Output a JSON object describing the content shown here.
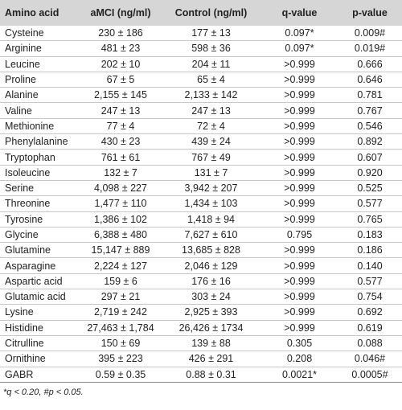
{
  "table": {
    "header": [
      "Amino acid",
      "aMCI (ng/ml)",
      "Control (ng/ml)",
      "q-value",
      "p-value"
    ],
    "rows": [
      [
        "Cysteine",
        "230 ± 186",
        "177 ± 13",
        "0.097*",
        "0.009#"
      ],
      [
        "Arginine",
        "481 ± 23",
        "598 ± 36",
        "0.097*",
        "0.019#"
      ],
      [
        "Leucine",
        "202 ± 10",
        "204 ± 11",
        ">0.999",
        "0.666"
      ],
      [
        "Proline",
        "67 ± 5",
        "65 ± 4",
        ">0.999",
        "0.646"
      ],
      [
        "Alanine",
        "2,155 ± 145",
        "2,133 ± 142",
        ">0.999",
        "0.781"
      ],
      [
        "Valine",
        "247 ± 13",
        "247 ± 13",
        ">0.999",
        "0.767"
      ],
      [
        "Methionine",
        "77 ± 4",
        "72 ± 4",
        ">0.999",
        "0.546"
      ],
      [
        "Phenylalanine",
        "430 ± 23",
        "439 ± 24",
        ">0.999",
        "0.892"
      ],
      [
        "Tryptophan",
        "761 ± 61",
        "767 ± 49",
        ">0.999",
        "0.607"
      ],
      [
        "Isoleucine",
        "132 ± 7",
        "131 ± 7",
        ">0.999",
        "0.920"
      ],
      [
        "Serine",
        "4,098 ± 227",
        "3,942 ± 207",
        ">0.999",
        "0.525"
      ],
      [
        "Threonine",
        "1,477 ± 110",
        "1,434 ± 103",
        ">0.999",
        "0.577"
      ],
      [
        "Tyrosine",
        "1,386 ± 102",
        "1,418 ± 94",
        ">0.999",
        "0.765"
      ],
      [
        "Glycine",
        "6,388 ± 480",
        "7,627 ± 610",
        "0.795",
        "0.183"
      ],
      [
        "Glutamine",
        "15,147 ± 889",
        "13,685 ± 828",
        ">0.999",
        "0.186"
      ],
      [
        "Asparagine",
        "2,224 ± 127",
        "2,046 ± 129",
        ">0.999",
        "0.140"
      ],
      [
        "Aspartic acid",
        "159 ± 6",
        "176 ± 16",
        ">0.999",
        "0.577"
      ],
      [
        "Glutamic acid",
        "297 ± 21",
        "303 ± 24",
        ">0.999",
        "0.754"
      ],
      [
        "Lysine",
        "2,719 ± 242",
        "2,925 ± 393",
        ">0.999",
        "0.692"
      ],
      [
        "Histidine",
        "27,463 ± 1,784",
        "26,426 ± 1734",
        ">0.999",
        "0.619"
      ],
      [
        "Citrulline",
        "150 ± 69",
        "139 ± 88",
        "0.305",
        "0.088"
      ],
      [
        "Ornithine",
        "395 ± 223",
        "426 ± 291",
        "0.208",
        "0.046#"
      ],
      [
        "GABR",
        "0.59 ± 0.35",
        "0.88 ± 0.31",
        "0.0021*",
        "0.0005#"
      ]
    ],
    "footnote": "*q < 0.20, #p < 0.05."
  }
}
